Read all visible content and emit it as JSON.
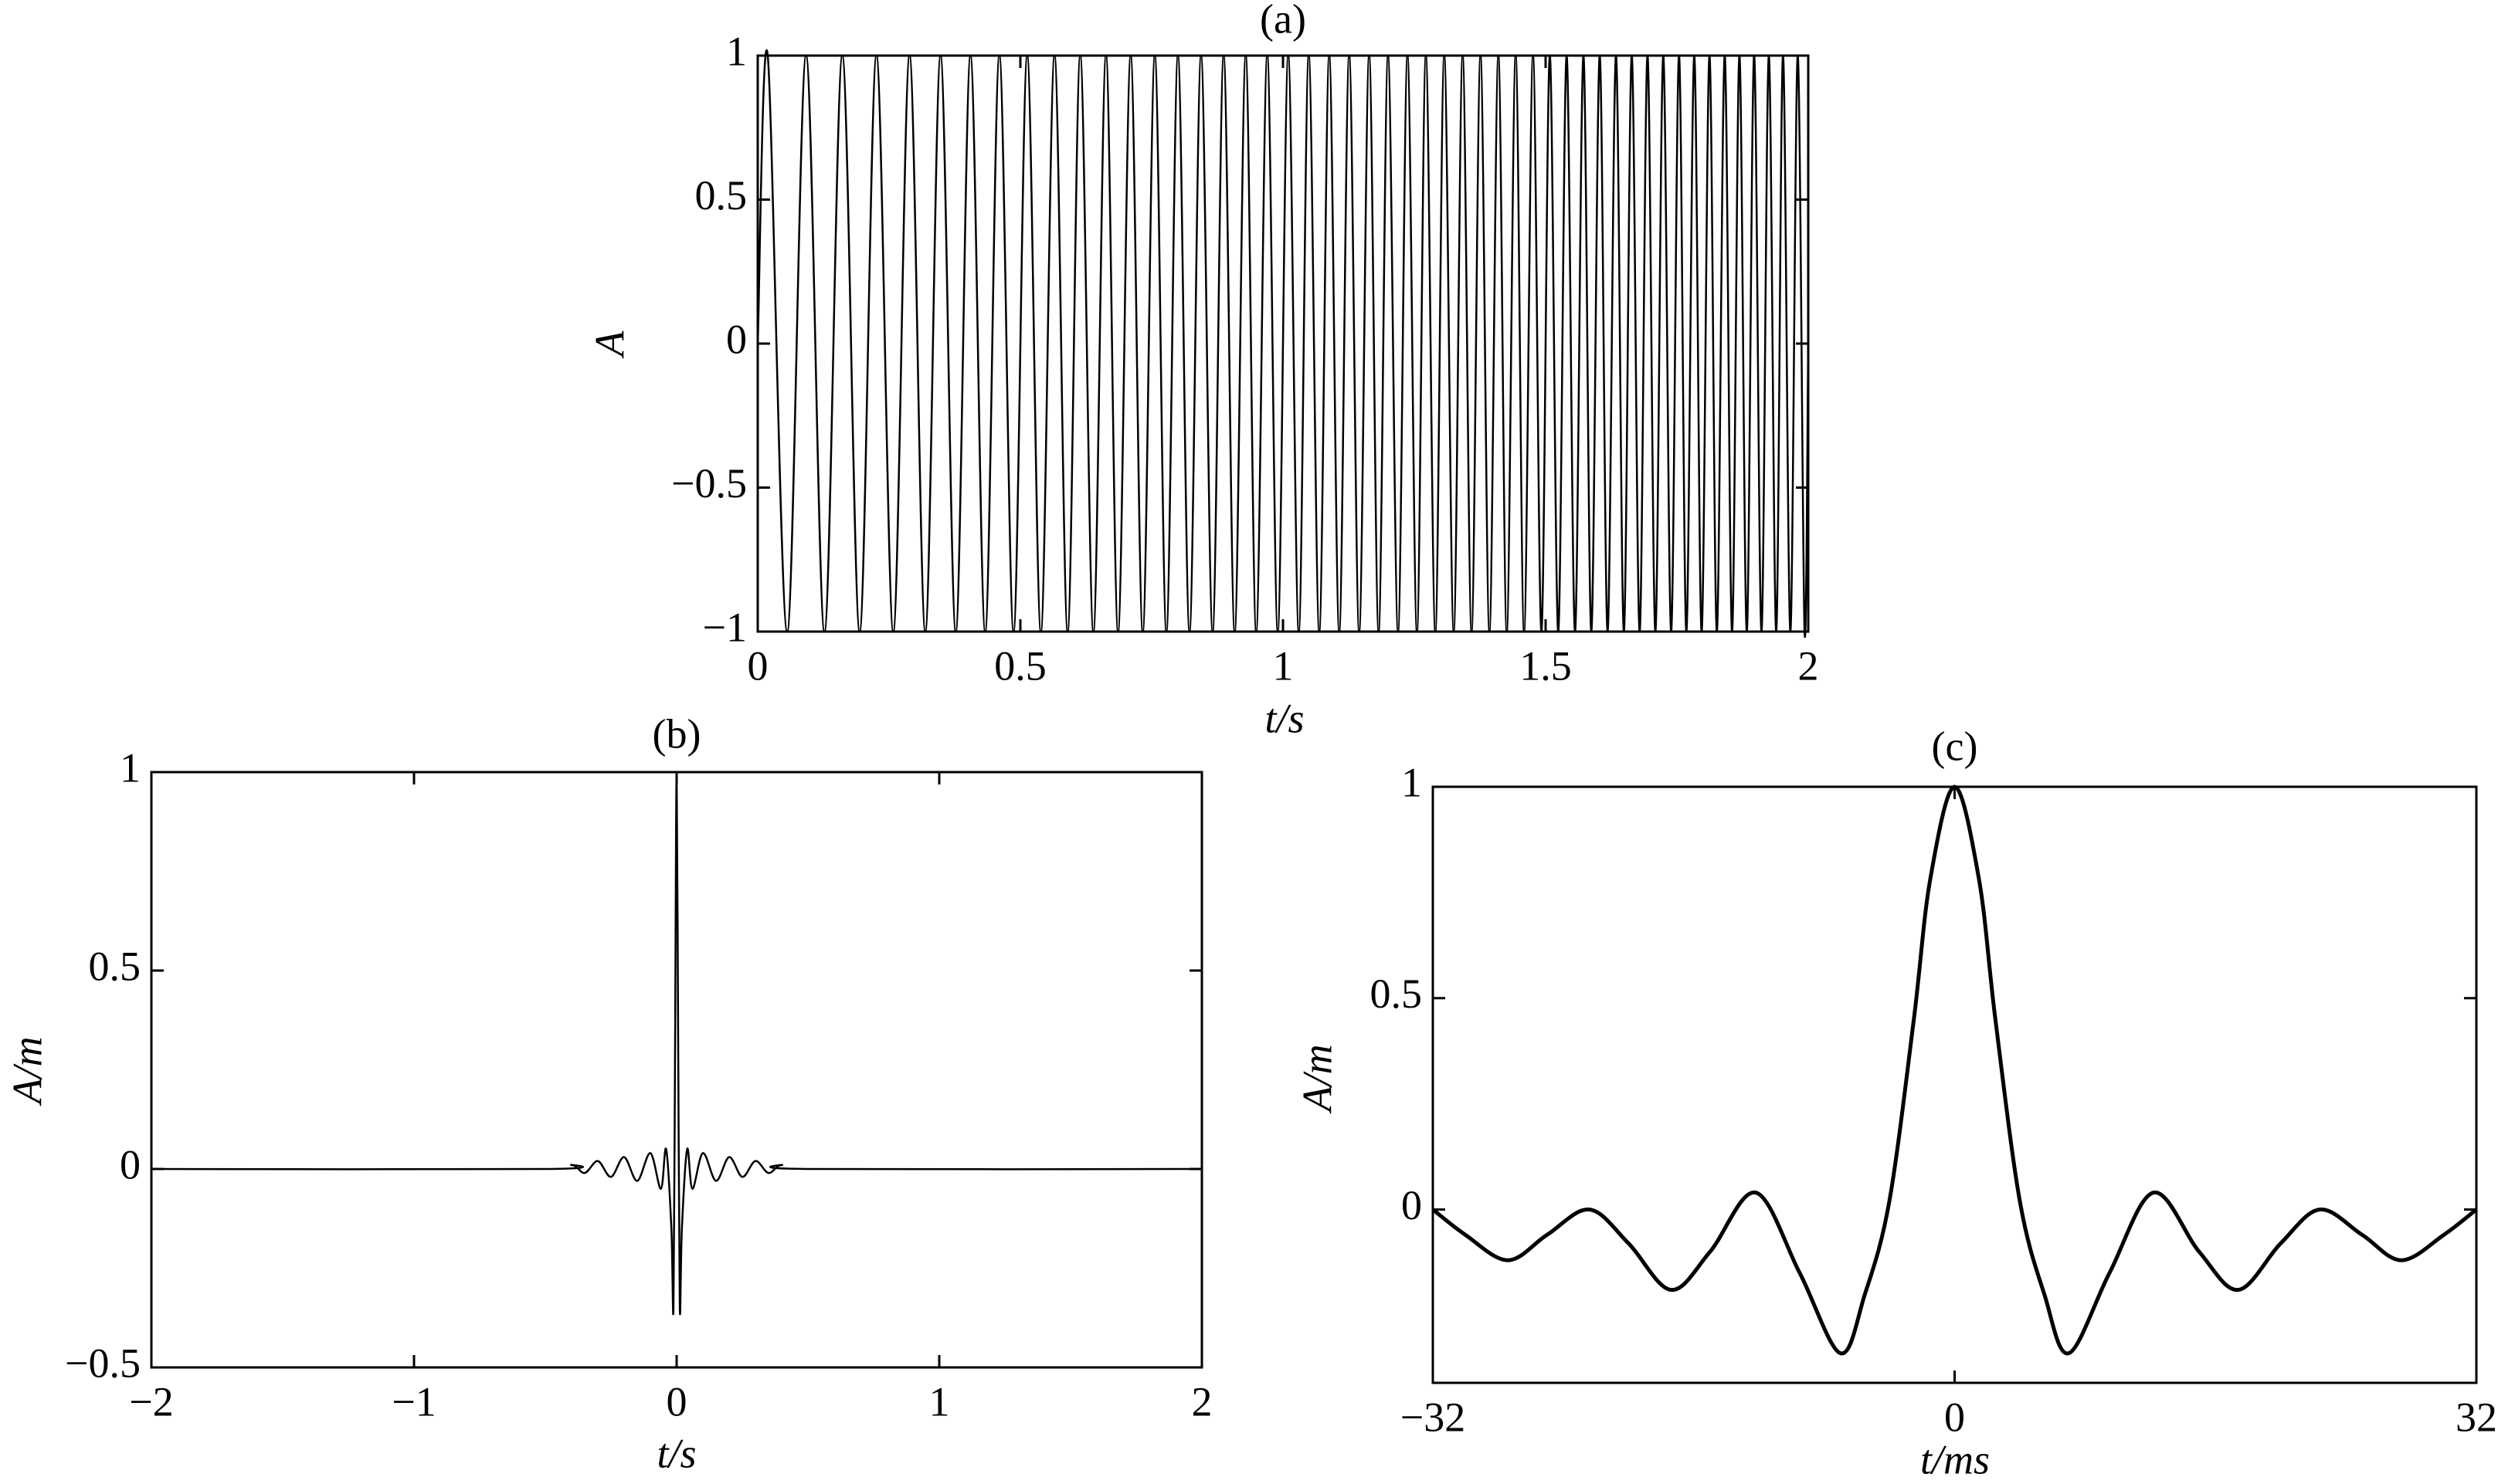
{
  "chart_data": [
    {
      "type": "line",
      "title": "(a)",
      "x_label": "t/s",
      "y_label": "A",
      "x": [
        0,
        0.019,
        0.056,
        0.092,
        0.127,
        0.161,
        0.194,
        0.226,
        0.258,
        0.289,
        0.319,
        0.348,
        0.377,
        0.405,
        0.433,
        0.46,
        0.487,
        0.513,
        0.539,
        0.565,
        0.59,
        0.614,
        0.639,
        0.663,
        0.686,
        0.71,
        0.733,
        0.756,
        0.778,
        0.8,
        0.822,
        0.844,
        0.866,
        0.887,
        0.908,
        0.929,
        0.949,
        0.97,
        0.99,
        1.01,
        1.03,
        1.049,
        1.069,
        1.088,
        1.107,
        1.126,
        1.145,
        1.164,
        1.182,
        1.2,
        1.219,
        1.237,
        1.255,
        1.272,
        1.29,
        1.307,
        1.325,
        1.342,
        1.359,
        1.376,
        1.393,
        1.41,
        1.426,
        1.443,
        1.459,
        1.476,
        1.492,
        1.508,
        1.524,
        1.54,
        1.556,
        1.572,
        1.587,
        1.603,
        1.618,
        1.634,
        1.649,
        1.664,
        1.679,
        1.694,
        1.709,
        1.724,
        1.739,
        1.754,
        1.768,
        1.783,
        1.797,
        1.812,
        1.826,
        1.841,
        1.855,
        1.869,
        1.883,
        1.897,
        1.911,
        1.925,
        1.939,
        1.952,
        1.966,
        1.98,
        1.993,
        2
      ],
      "series": [
        {
          "color": "#000000",
          "values": [
            0,
            1,
            -1,
            1,
            -1,
            1,
            -1,
            1,
            -1,
            1,
            -1,
            1,
            -1,
            1,
            -1,
            1,
            -1,
            1,
            -1,
            1,
            -1,
            1,
            -1,
            1,
            -1,
            1,
            -1,
            1,
            -1,
            1,
            -1,
            1,
            -1,
            1,
            -1,
            1,
            -1,
            1,
            -1,
            1,
            -1,
            1,
            -1,
            1,
            -1,
            1,
            -1,
            1,
            -1,
            1,
            -1,
            1,
            -1,
            1,
            -1,
            1,
            -1,
            1,
            -1,
            1,
            -1,
            1,
            -1,
            1,
            -1,
            1,
            -1,
            1,
            -1,
            1,
            -1,
            1,
            -1,
            1,
            -1,
            1,
            -1,
            1,
            -1,
            1,
            -1,
            1,
            -1,
            1,
            -1,
            1,
            -1,
            1,
            -1,
            1,
            -1,
            1,
            -1,
            1,
            -1,
            1,
            -1,
            1,
            -1,
            1,
            -1,
            0
          ]
        }
      ],
      "xlim": [
        0,
        2
      ],
      "xticks": [
        0,
        0.5,
        1,
        1.5,
        2
      ],
      "ylim": [
        -1,
        1
      ],
      "yticks": [
        {
          "value": -1,
          "label": "−1"
        },
        {
          "value": -0.5,
          "label": "−0.5"
        },
        0,
        0.5,
        1
      ]
    },
    {
      "type": "line",
      "title": "(b)",
      "x_label": "t/s",
      "y_label": "A/m",
      "x": [
        -2,
        -0.5,
        -0.4,
        -0.35,
        -0.3,
        -0.25,
        -0.2,
        -0.15,
        -0.1,
        -0.06,
        -0.04,
        -0.02,
        -0.012,
        -0.006,
        0,
        0.006,
        0.012,
        0.02,
        0.04,
        0.06,
        0.1,
        0.15,
        0.2,
        0.25,
        0.3,
        0.35,
        0.4,
        0.5,
        2
      ],
      "series": [
        {
          "color": "#000000",
          "values": [
            0,
            0,
            0.01,
            -0.01,
            0.02,
            -0.02,
            0.03,
            -0.03,
            0.04,
            -0.05,
            0.05,
            -0.15,
            -0.35,
            0.3,
            1,
            0.3,
            -0.35,
            -0.15,
            0.05,
            -0.05,
            0.04,
            -0.03,
            0.03,
            -0.02,
            0.02,
            -0.01,
            0.01,
            0,
            0
          ]
        }
      ],
      "xlim": [
        -2,
        2
      ],
      "xticks": [
        {
          "value": -2,
          "label": "−2"
        },
        {
          "value": -1,
          "label": "−1"
        },
        0,
        1,
        2
      ],
      "ylim": [
        -0.5,
        1
      ],
      "yticks": [
        {
          "value": -0.5,
          "label": "−0.5"
        },
        0,
        0.5,
        1
      ]
    },
    {
      "type": "line",
      "title": "(c)",
      "x_label": "t/ms",
      "y_label": "A/m",
      "x": [
        -32,
        -30,
        -27.4,
        -25,
        -22.4,
        -20,
        -17.4,
        -15,
        -12.2,
        -9.5,
        -7,
        -5.5,
        -4,
        -2.5,
        -1.5,
        0,
        1.5,
        2.5,
        4,
        5.5,
        7,
        9.5,
        12.2,
        15,
        17.4,
        20,
        22.4,
        25,
        27.4,
        30,
        32
      ],
      "series": [
        {
          "color": "#000000",
          "values": [
            0,
            -0.06,
            -0.12,
            -0.06,
            0,
            -0.08,
            -0.19,
            -0.1,
            0.04,
            -0.15,
            -0.34,
            -0.2,
            0.02,
            0.45,
            0.78,
            1,
            0.78,
            0.45,
            0.02,
            -0.2,
            -0.34,
            -0.15,
            0.04,
            -0.1,
            -0.19,
            -0.08,
            0,
            -0.06,
            -0.12,
            -0.06,
            0
          ]
        }
      ],
      "xlim": [
        -32,
        32
      ],
      "xticks": [
        {
          "value": -32,
          "label": "−32"
        },
        0,
        32
      ],
      "ylim": [
        -0.41,
        1
      ],
      "yticks": [
        0,
        0.5,
        1
      ]
    }
  ]
}
